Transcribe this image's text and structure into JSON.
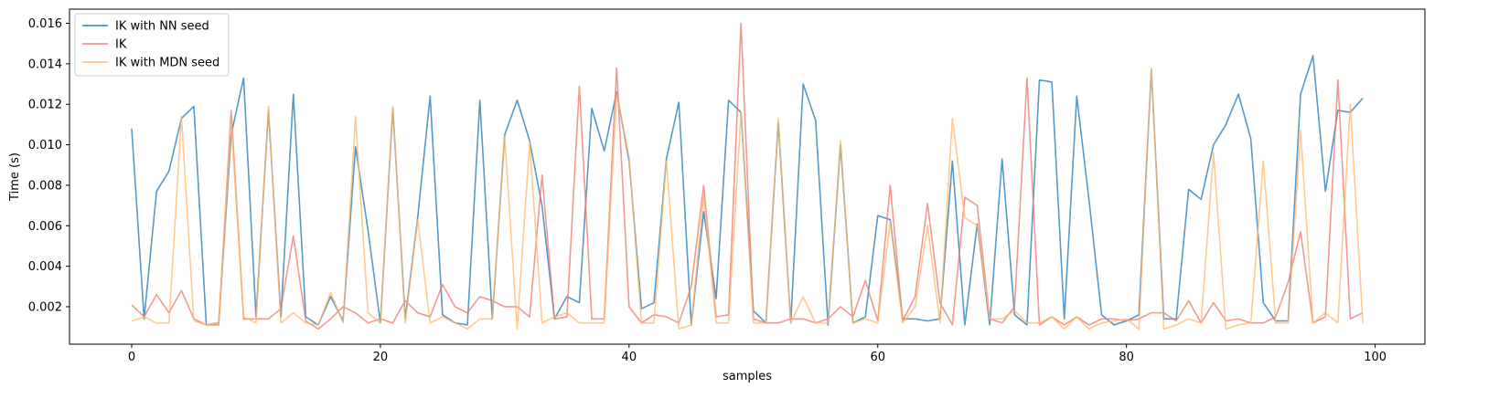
{
  "chart_data": {
    "type": "line",
    "title": "",
    "xlabel": "samples",
    "ylabel": "Time (s)",
    "xlim": [
      -5,
      104
    ],
    "ylim": [
      0.00015,
      0.0167
    ],
    "xticks": [
      0,
      20,
      40,
      60,
      80,
      100
    ],
    "yticks": [
      0.002,
      0.004,
      0.006,
      0.008,
      0.01,
      0.012,
      0.014,
      0.016
    ],
    "ytick_labels": [
      "0.002",
      "0.004",
      "0.006",
      "0.008",
      "0.010",
      "0.012",
      "0.014",
      "0.016"
    ],
    "grid": false,
    "legend": "top-left",
    "series": [
      {
        "name": "IK with NN seed",
        "color": "#1f77b4",
        "values": [
          0.0108,
          0.0014,
          0.0077,
          0.0087,
          0.0113,
          0.0119,
          0.0011,
          0.0012,
          0.0105,
          0.0133,
          0.0015,
          0.0117,
          0.0015,
          0.0125,
          0.0015,
          0.0011,
          0.0025,
          0.0013,
          0.0099,
          0.0058,
          0.0012,
          0.0118,
          0.0014,
          0.0064,
          0.0124,
          0.0016,
          0.0012,
          0.0011,
          0.0122,
          0.0014,
          0.0105,
          0.0122,
          0.0102,
          0.007,
          0.0014,
          0.0025,
          0.0022,
          0.0118,
          0.0097,
          0.0126,
          0.0092,
          0.0019,
          0.0022,
          0.0093,
          0.0121,
          0.0011,
          0.0067,
          0.0024,
          0.0122,
          0.0116,
          0.0018,
          0.0012,
          0.0111,
          0.0012,
          0.013,
          0.0112,
          0.0011,
          0.01,
          0.0012,
          0.0015,
          0.0065,
          0.0063,
          0.0014,
          0.0014,
          0.0013,
          0.0014,
          0.0092,
          0.0011,
          0.0061,
          0.0011,
          0.0093,
          0.0016,
          0.0011,
          0.0132,
          0.0131,
          0.0014,
          0.0124,
          0.0072,
          0.0016,
          0.0011,
          0.0013,
          0.0016,
          0.0137,
          0.0014,
          0.0014,
          0.0078,
          0.0073,
          0.01,
          0.011,
          0.0125,
          0.0103,
          0.0022,
          0.0013,
          0.0013,
          0.0125,
          0.0144,
          0.0077,
          0.0117,
          0.0116,
          0.0123
        ]
      },
      {
        "name": "IK",
        "color": "#f0776b",
        "values": [
          0.0021,
          0.0015,
          0.0026,
          0.0017,
          0.0028,
          0.0014,
          0.0011,
          0.0011,
          0.0117,
          0.0014,
          0.0014,
          0.0014,
          0.0019,
          0.0055,
          0.0013,
          0.0009,
          0.0014,
          0.002,
          0.0017,
          0.0012,
          0.0014,
          0.0012,
          0.0023,
          0.0017,
          0.0015,
          0.0031,
          0.002,
          0.0017,
          0.0025,
          0.0023,
          0.002,
          0.002,
          0.0015,
          0.0085,
          0.0014,
          0.0015,
          0.0129,
          0.0014,
          0.0014,
          0.0138,
          0.002,
          0.0012,
          0.0016,
          0.0015,
          0.0012,
          0.003,
          0.008,
          0.0015,
          0.0016,
          0.016,
          0.0014,
          0.0012,
          0.0012,
          0.0014,
          0.0014,
          0.0012,
          0.0014,
          0.002,
          0.0015,
          0.0033,
          0.0013,
          0.008,
          0.0013,
          0.0025,
          0.0071,
          0.0022,
          0.0011,
          0.0074,
          0.007,
          0.0014,
          0.0012,
          0.002,
          0.0133,
          0.0011,
          0.0015,
          0.0011,
          0.0015,
          0.0011,
          0.0014,
          0.0014,
          0.0013,
          0.0014,
          0.0017,
          0.0017,
          0.0013,
          0.0023,
          0.0012,
          0.0022,
          0.0013,
          0.0014,
          0.0012,
          0.0012,
          0.0015,
          0.0032,
          0.0057,
          0.0012,
          0.0015,
          0.0132,
          0.0014,
          0.0017
        ]
      },
      {
        "name": "IK with MDN seed",
        "color": "#ffb86c",
        "values": [
          0.0013,
          0.0015,
          0.0012,
          0.0012,
          0.0114,
          0.0013,
          0.0011,
          0.0012,
          0.0111,
          0.0015,
          0.0012,
          0.0119,
          0.0012,
          0.0017,
          0.0012,
          0.0011,
          0.0027,
          0.0012,
          0.0114,
          0.0017,
          0.0012,
          0.0119,
          0.0012,
          0.0063,
          0.0012,
          0.0015,
          0.0012,
          0.0009,
          0.0014,
          0.0014,
          0.0104,
          0.0009,
          0.0101,
          0.0012,
          0.0015,
          0.0017,
          0.0012,
          0.0012,
          0.0012,
          0.0125,
          0.0094,
          0.0012,
          0.0012,
          0.0092,
          0.0009,
          0.0011,
          0.0075,
          0.0012,
          0.0012,
          0.0116,
          0.0012,
          0.0012,
          0.0113,
          0.0012,
          0.0025,
          0.0012,
          0.0012,
          0.0102,
          0.0012,
          0.0014,
          0.0012,
          0.0062,
          0.0012,
          0.002,
          0.006,
          0.0012,
          0.0113,
          0.0064,
          0.006,
          0.0014,
          0.0014,
          0.0018,
          0.0012,
          0.0012,
          0.0015,
          0.0009,
          0.0015,
          0.0009,
          0.0012,
          0.0013,
          0.0014,
          0.0009,
          0.0138,
          0.0009,
          0.0011,
          0.0014,
          0.0012,
          0.0096,
          0.0009,
          0.0011,
          0.0012,
          0.0092,
          0.0012,
          0.0012,
          0.0107,
          0.0012,
          0.0017,
          0.0012,
          0.012,
          0.0012
        ]
      }
    ]
  }
}
